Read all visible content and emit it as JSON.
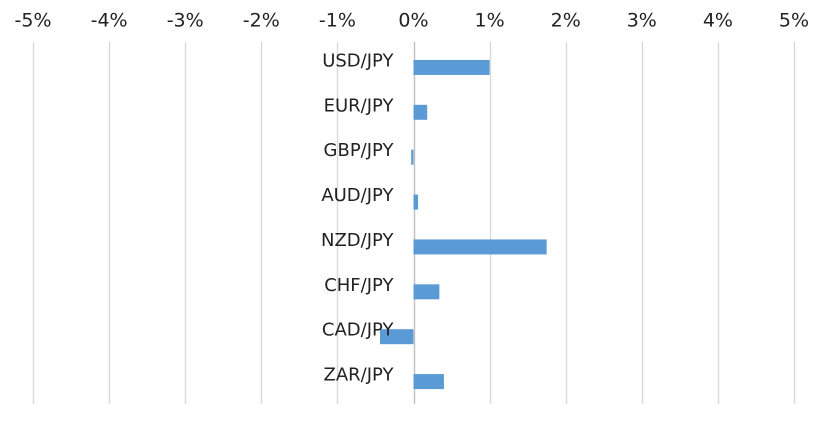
{
  "chart_data": {
    "type": "bar",
    "orientation": "horizontal",
    "title": "",
    "xlabel": "",
    "ylabel": "",
    "xlim": [
      -5,
      5
    ],
    "x_ticks": [
      -5,
      -4,
      -3,
      -2,
      -1,
      0,
      1,
      2,
      3,
      4,
      5
    ],
    "x_tick_labels": [
      "-5%",
      "-4%",
      "-3%",
      "-2%",
      "-1%",
      "0%",
      "1%",
      "2%",
      "3%",
      "4%",
      "5%"
    ],
    "x_axis_position": "top",
    "grid": true,
    "legend": "none",
    "categories": [
      "USD/JPY",
      "EUR/JPY",
      "GBP/JPY",
      "AUD/JPY",
      "NZD/JPY",
      "CHF/JPY",
      "CAD/JPY",
      "ZAR/JPY"
    ],
    "values": [
      1.0,
      0.18,
      -0.03,
      0.06,
      1.75,
      0.34,
      -0.44,
      0.4
    ],
    "unit": "%",
    "colors": {
      "bar": "#5b9bd5",
      "grid": "#d9d9d9",
      "axis": "#bfbfbf",
      "text": "#222222"
    }
  }
}
